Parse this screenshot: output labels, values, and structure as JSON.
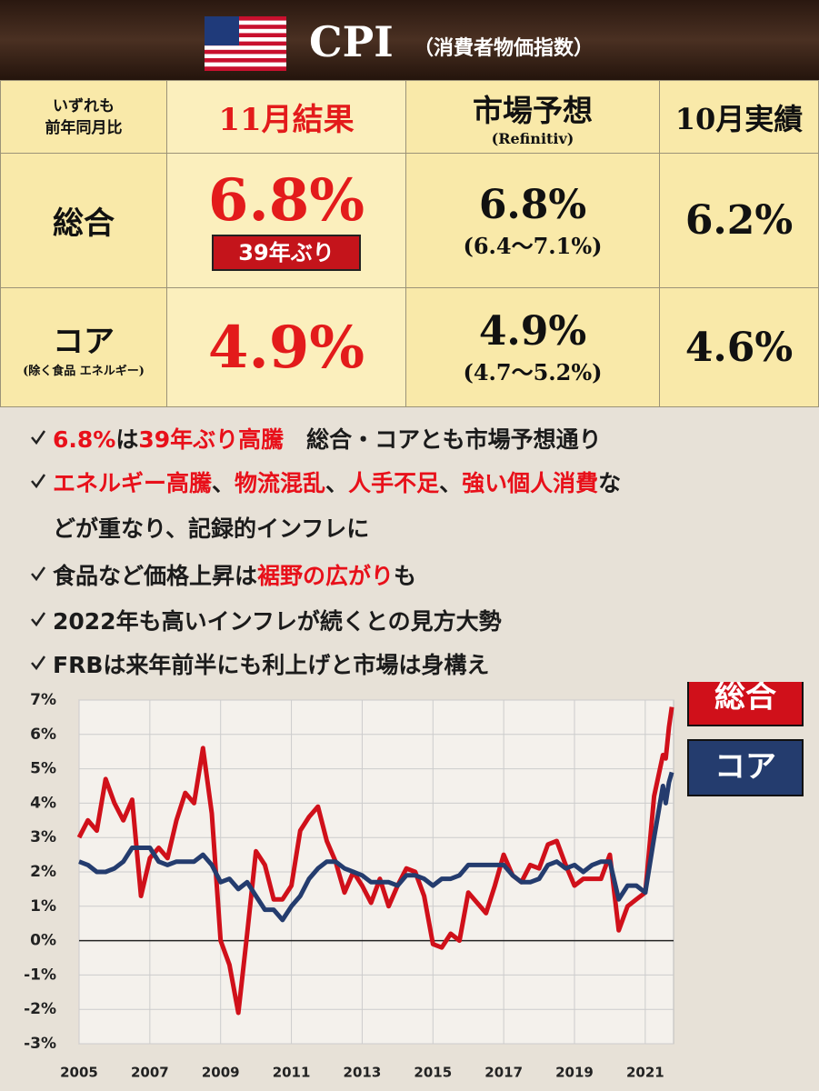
{
  "header": {
    "title": "CPI",
    "subtitle": "（消費者物価指数）"
  },
  "table": {
    "corner": [
      "いずれも",
      "前年同月比"
    ],
    "columns": [
      {
        "label": "11月結果"
      },
      {
        "label": "市場予想",
        "sub": "(Refinitiv)"
      },
      {
        "label": "10月実績"
      }
    ],
    "rows": [
      {
        "label": "総合",
        "cells": [
          {
            "value": "6.8%",
            "badge": "39年ぶり"
          },
          {
            "value": "6.8%",
            "range": "(6.4〜7.1%)"
          },
          {
            "value": "6.2%"
          }
        ]
      },
      {
        "label": "コア",
        "sub": "(除く食品 エネルギー)",
        "cells": [
          {
            "value": "4.9%"
          },
          {
            "value": "4.9%",
            "range": "(4.7〜5.2%)"
          },
          {
            "value": "4.6%"
          }
        ]
      }
    ]
  },
  "notes": [
    [
      [
        {
          "text": "6.8%",
          "color": "#e8101a"
        },
        {
          "text": "は"
        },
        {
          "text": "39年ぶり高騰",
          "color": "#e8101a"
        },
        {
          "text": "　総合・コアとも市場予想通り"
        }
      ]
    ],
    [
      [
        {
          "text": "エネルギー高騰",
          "color": "#e8101a"
        },
        {
          "text": "、"
        },
        {
          "text": "物流混乱",
          "color": "#e8101a"
        },
        {
          "text": "、"
        },
        {
          "text": "人手不足",
          "color": "#e8101a"
        },
        {
          "text": "、"
        },
        {
          "text": "強い個人消費",
          "color": "#e8101a"
        },
        {
          "text": "な"
        }
      ],
      [
        {
          "text": "どが重なり、記録的インフレに"
        }
      ]
    ],
    [
      [
        {
          "text": "食品など価格上昇は"
        },
        {
          "text": "裾野の広がり",
          "color": "#e8101a"
        },
        {
          "text": "も"
        }
      ]
    ],
    [
      [
        {
          "text": "2022年も高いインフレが続くとの見方大勢"
        }
      ]
    ],
    [
      [
        {
          "text": "FRBは来年前半にも利上げと市場は身構え"
        }
      ]
    ]
  ],
  "chart_data": {
    "type": "line",
    "x": [
      2005,
      2005.25,
      2005.5,
      2005.75,
      2006,
      2006.25,
      2006.5,
      2006.75,
      2007,
      2007.25,
      2007.5,
      2007.75,
      2008,
      2008.25,
      2008.5,
      2008.75,
      2009,
      2009.25,
      2009.5,
      2009.75,
      2010,
      2010.25,
      2010.5,
      2010.75,
      2011,
      2011.25,
      2011.5,
      2011.75,
      2012,
      2012.25,
      2012.5,
      2012.75,
      2013,
      2013.25,
      2013.5,
      2013.75,
      2014,
      2014.25,
      2014.5,
      2014.75,
      2015,
      2015.25,
      2015.5,
      2015.75,
      2016,
      2016.25,
      2016.5,
      2016.75,
      2017,
      2017.25,
      2017.5,
      2017.75,
      2018,
      2018.25,
      2018.5,
      2018.75,
      2019,
      2019.25,
      2019.5,
      2019.75,
      2020,
      2020.25,
      2020.5,
      2020.75,
      2021,
      2021.25,
      2021.5,
      2021.58,
      2021.67,
      2021.75
    ],
    "series": [
      {
        "name": "総合",
        "color": "#d0101a",
        "values": [
          3.0,
          3.5,
          3.2,
          4.7,
          4.0,
          3.5,
          4.1,
          1.3,
          2.4,
          2.7,
          2.4,
          3.5,
          4.3,
          4.0,
          5.6,
          3.7,
          0.0,
          -0.7,
          -2.1,
          0.2,
          2.6,
          2.2,
          1.2,
          1.2,
          1.6,
          3.2,
          3.6,
          3.9,
          2.9,
          2.3,
          1.4,
          2.0,
          1.6,
          1.1,
          1.8,
          1.0,
          1.6,
          2.1,
          2.0,
          1.3,
          -0.1,
          -0.2,
          0.2,
          0.0,
          1.4,
          1.1,
          0.8,
          1.6,
          2.5,
          1.9,
          1.7,
          2.2,
          2.1,
          2.8,
          2.9,
          2.2,
          1.6,
          1.8,
          1.8,
          1.8,
          2.5,
          0.3,
          1.0,
          1.2,
          1.4,
          4.2,
          5.4,
          5.3,
          6.2,
          6.8
        ]
      },
      {
        "name": "コア",
        "color": "#243c6e",
        "values": [
          2.3,
          2.2,
          2.0,
          2.0,
          2.1,
          2.3,
          2.7,
          2.7,
          2.7,
          2.3,
          2.2,
          2.3,
          2.3,
          2.3,
          2.5,
          2.2,
          1.7,
          1.8,
          1.5,
          1.7,
          1.3,
          0.9,
          0.9,
          0.6,
          1.0,
          1.3,
          1.8,
          2.1,
          2.3,
          2.3,
          2.1,
          2.0,
          1.9,
          1.7,
          1.7,
          1.7,
          1.6,
          1.9,
          1.9,
          1.8,
          1.6,
          1.8,
          1.8,
          1.9,
          2.2,
          2.2,
          2.2,
          2.2,
          2.2,
          1.9,
          1.7,
          1.7,
          1.8,
          2.2,
          2.3,
          2.1,
          2.2,
          2.0,
          2.2,
          2.3,
          2.3,
          1.2,
          1.6,
          1.6,
          1.4,
          3.0,
          4.5,
          4.0,
          4.6,
          4.9
        ]
      }
    ],
    "xlim": [
      2005,
      2021.8
    ],
    "xticks": [
      2005,
      2007,
      2009,
      2011,
      2013,
      2015,
      2017,
      2019,
      2021
    ],
    "ylim": [
      -3,
      7
    ],
    "yticks": [
      {
        "value": 7,
        "label": "7%"
      },
      {
        "value": 6,
        "label": "6%"
      },
      {
        "value": 5,
        "label": "5%"
      },
      {
        "value": 4,
        "label": "4%"
      },
      {
        "value": 3,
        "label": "3%"
      },
      {
        "value": 2,
        "label": "2%"
      },
      {
        "value": 1,
        "label": "1%"
      },
      {
        "value": 0,
        "label": "0%"
      },
      {
        "value": -1,
        "label": "-1%"
      },
      {
        "value": -2,
        "label": "-2%"
      },
      {
        "value": -3,
        "label": "-3%"
      }
    ],
    "grid": true
  }
}
